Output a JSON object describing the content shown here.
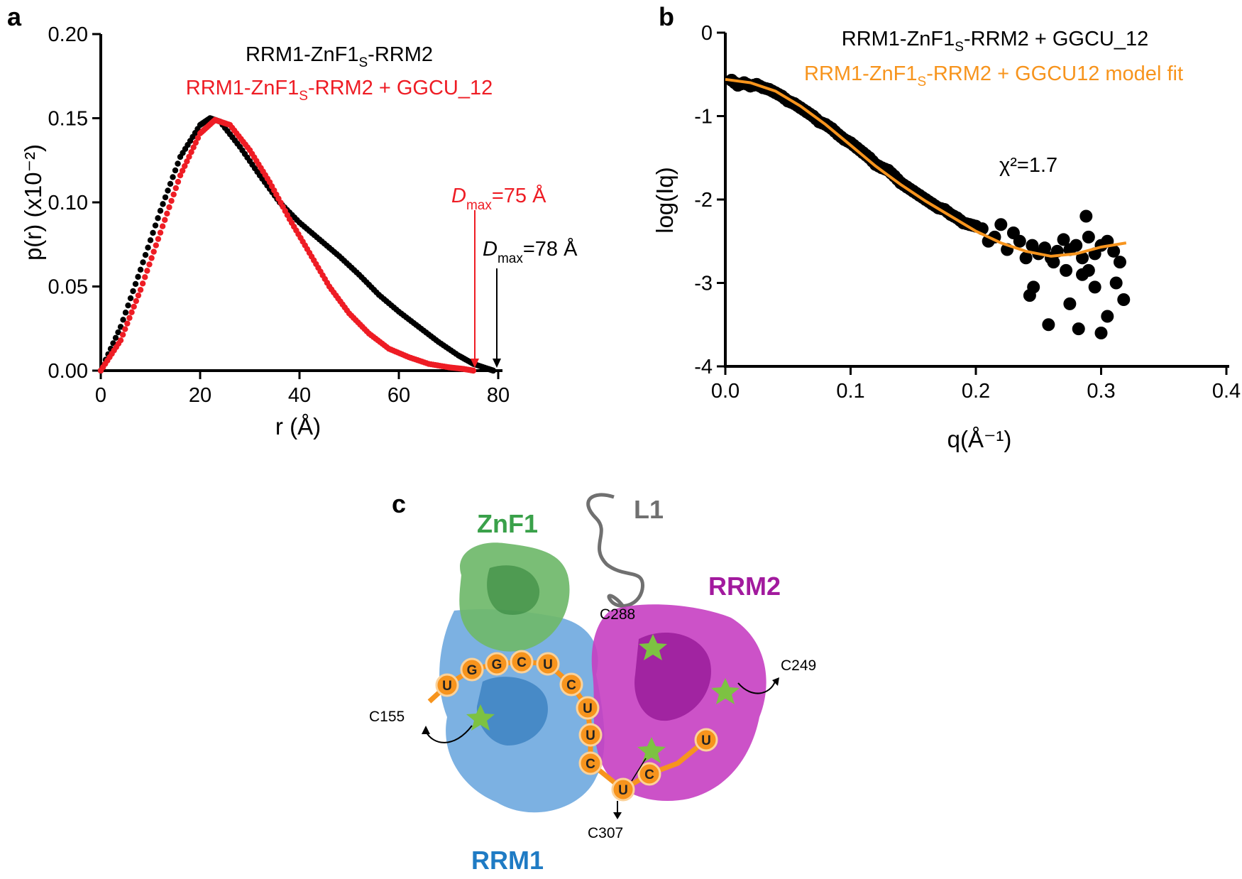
{
  "panels": {
    "a": "a",
    "b": "b",
    "c": "c"
  },
  "colors": {
    "free": "#000000",
    "bound": "#ee1c24",
    "fit": "#f7941d",
    "znf1": "#3aa14a",
    "rrm1": "#1f7bc4",
    "rrm2": "#a21a9e",
    "l1": "#707070",
    "rna": "#f7941d",
    "star": "#7dc242"
  },
  "panel_a": {
    "legend_free": {
      "pre": "RRM1-ZnF1",
      "sub": "S",
      "post": "-RRM2"
    },
    "legend_bound": {
      "pre": "RRM1-ZnF1",
      "sub": "S",
      "post": "-RRM2 + GGCU_12"
    },
    "dmax_bound": {
      "sym": "D",
      "sub": "max",
      "rest": "=75 Å"
    },
    "dmax_free": {
      "sym": "D",
      "sub": "max",
      "rest": "=78 Å"
    }
  },
  "panel_b": {
    "legend_data": {
      "pre": "RRM1-ZnF1",
      "sub": "S",
      "post": "-RRM2 + GGCU_12"
    },
    "legend_fit": {
      "pre": "RRM1-ZnF1",
      "sub": "S",
      "post": "-RRM2 + GGCU12 model fit"
    },
    "chi": "χ²=1.7"
  },
  "chart_data": [
    {
      "type": "scatter",
      "xlabel": "r (Å)",
      "ylabel": "p(r) (x10⁻²)",
      "xlim": [
        0,
        80
      ],
      "ylim": [
        0,
        0.2
      ],
      "xticks": [
        "0",
        "20",
        "40",
        "60",
        "80"
      ],
      "yticks": [
        "0.00",
        "0.05",
        "0.10",
        "0.15",
        "0.20"
      ],
      "series": [
        {
          "name": "RRM1-ZnF1S-RRM2",
          "x": [
            0,
            4,
            8,
            12,
            16,
            20,
            22,
            24,
            28,
            32,
            36,
            40,
            44,
            48,
            52,
            56,
            60,
            64,
            68,
            72,
            75,
            78,
            79
          ],
          "y": [
            0,
            0.026,
            0.06,
            0.095,
            0.127,
            0.146,
            0.15,
            0.148,
            0.133,
            0.116,
            0.1,
            0.088,
            0.078,
            0.068,
            0.057,
            0.045,
            0.035,
            0.026,
            0.017,
            0.009,
            0.004,
            0.001,
            0
          ]
        },
        {
          "name": "RRM1-ZnF1S-RRM2 + GGCU_12",
          "x": [
            0,
            4,
            8,
            12,
            16,
            20,
            23,
            26,
            30,
            34,
            38,
            42,
            46,
            50,
            54,
            58,
            62,
            66,
            70,
            73,
            75
          ],
          "y": [
            0,
            0.018,
            0.048,
            0.082,
            0.116,
            0.141,
            0.149,
            0.146,
            0.131,
            0.112,
            0.09,
            0.07,
            0.05,
            0.034,
            0.022,
            0.013,
            0.008,
            0.004,
            0.002,
            0.001,
            0
          ]
        }
      ],
      "annotations": [
        {
          "label": "Dmax=75 Å",
          "x": 75
        },
        {
          "label": "Dmax=78 Å",
          "x": 79
        }
      ]
    },
    {
      "type": "scatter",
      "xlabel": "q(Å⁻¹)",
      "ylabel": "log(Iq)",
      "xlim": [
        0,
        0.4
      ],
      "ylim": [
        -4,
        0
      ],
      "xticks": [
        "0.0",
        "0.1",
        "0.2",
        "0.3",
        "0.4"
      ],
      "yticks": [
        "-4",
        "-3",
        "-2",
        "-1",
        "0"
      ],
      "series": [
        {
          "name": "RRM1-ZnF1S-RRM2 + GGCU_12",
          "x": [
            0.005,
            0.01,
            0.015,
            0.02,
            0.025,
            0.03,
            0.035,
            0.04,
            0.045,
            0.05,
            0.055,
            0.06,
            0.065,
            0.07,
            0.075,
            0.08,
            0.085,
            0.09,
            0.095,
            0.1,
            0.105,
            0.11,
            0.115,
            0.12,
            0.125,
            0.13,
            0.135,
            0.14,
            0.145,
            0.15,
            0.155,
            0.16,
            0.165,
            0.17,
            0.175,
            0.18,
            0.185,
            0.19,
            0.195,
            0.2,
            0.205,
            0.21,
            0.215,
            0.22,
            0.225,
            0.23,
            0.235,
            0.24,
            0.245,
            0.25,
            0.255,
            0.26,
            0.265,
            0.27,
            0.275,
            0.28,
            0.285,
            0.29,
            0.295,
            0.3,
            0.305,
            0.31,
            0.315,
            0.243,
            0.246,
            0.258,
            0.262,
            0.275,
            0.272,
            0.282,
            0.288,
            0.295,
            0.3,
            0.312,
            0.318,
            0.305,
            0.29,
            0.285
          ],
          "y": [
            -0.57,
            -0.63,
            -0.6,
            -0.64,
            -0.62,
            -0.66,
            -0.68,
            -0.72,
            -0.76,
            -0.82,
            -0.85,
            -0.9,
            -0.95,
            -1.0,
            -1.07,
            -1.1,
            -1.15,
            -1.22,
            -1.28,
            -1.32,
            -1.38,
            -1.44,
            -1.5,
            -1.58,
            -1.62,
            -1.65,
            -1.72,
            -1.8,
            -1.85,
            -1.9,
            -1.95,
            -2.0,
            -2.05,
            -2.1,
            -2.12,
            -2.18,
            -2.22,
            -2.28,
            -2.3,
            -2.32,
            -2.35,
            -2.5,
            -2.45,
            -2.3,
            -2.6,
            -2.4,
            -2.5,
            -2.7,
            -2.55,
            -2.65,
            -2.58,
            -2.7,
            -2.62,
            -2.48,
            -2.6,
            -2.55,
            -2.7,
            -2.45,
            -2.65,
            -2.55,
            -2.5,
            -2.62,
            -2.75,
            -3.15,
            -3.05,
            -3.5,
            -2.75,
            -3.25,
            -2.85,
            -3.55,
            -2.2,
            -3.05,
            -3.6,
            -3.0,
            -3.2,
            -3.4,
            -2.85,
            -2.9
          ]
        },
        {
          "name": "RRM1-ZnF1S-RRM2 + GGCU12 model fit",
          "x": [
            0,
            0.02,
            0.04,
            0.06,
            0.08,
            0.1,
            0.12,
            0.14,
            0.16,
            0.18,
            0.2,
            0.22,
            0.24,
            0.26,
            0.28,
            0.3,
            0.32
          ],
          "y": [
            -0.56,
            -0.6,
            -0.7,
            -0.88,
            -1.1,
            -1.35,
            -1.6,
            -1.82,
            -2.02,
            -2.2,
            -2.38,
            -2.52,
            -2.62,
            -2.68,
            -2.65,
            -2.57,
            -2.52
          ]
        }
      ],
      "annotations": [
        {
          "label": "χ²=1.7"
        }
      ]
    }
  ],
  "panel_c": {
    "domains": {
      "znf1": "ZnF1",
      "l1": "L1",
      "rrm2": "RRM2",
      "rrm1": "RRM1"
    },
    "residues": {
      "c288": "C288",
      "c249": "C249",
      "c155": "C155",
      "c307": "C307"
    },
    "rna": [
      "U",
      "G",
      "G",
      "C",
      "U",
      "C",
      "U",
      "U",
      "C",
      "U",
      "C",
      "U"
    ]
  }
}
